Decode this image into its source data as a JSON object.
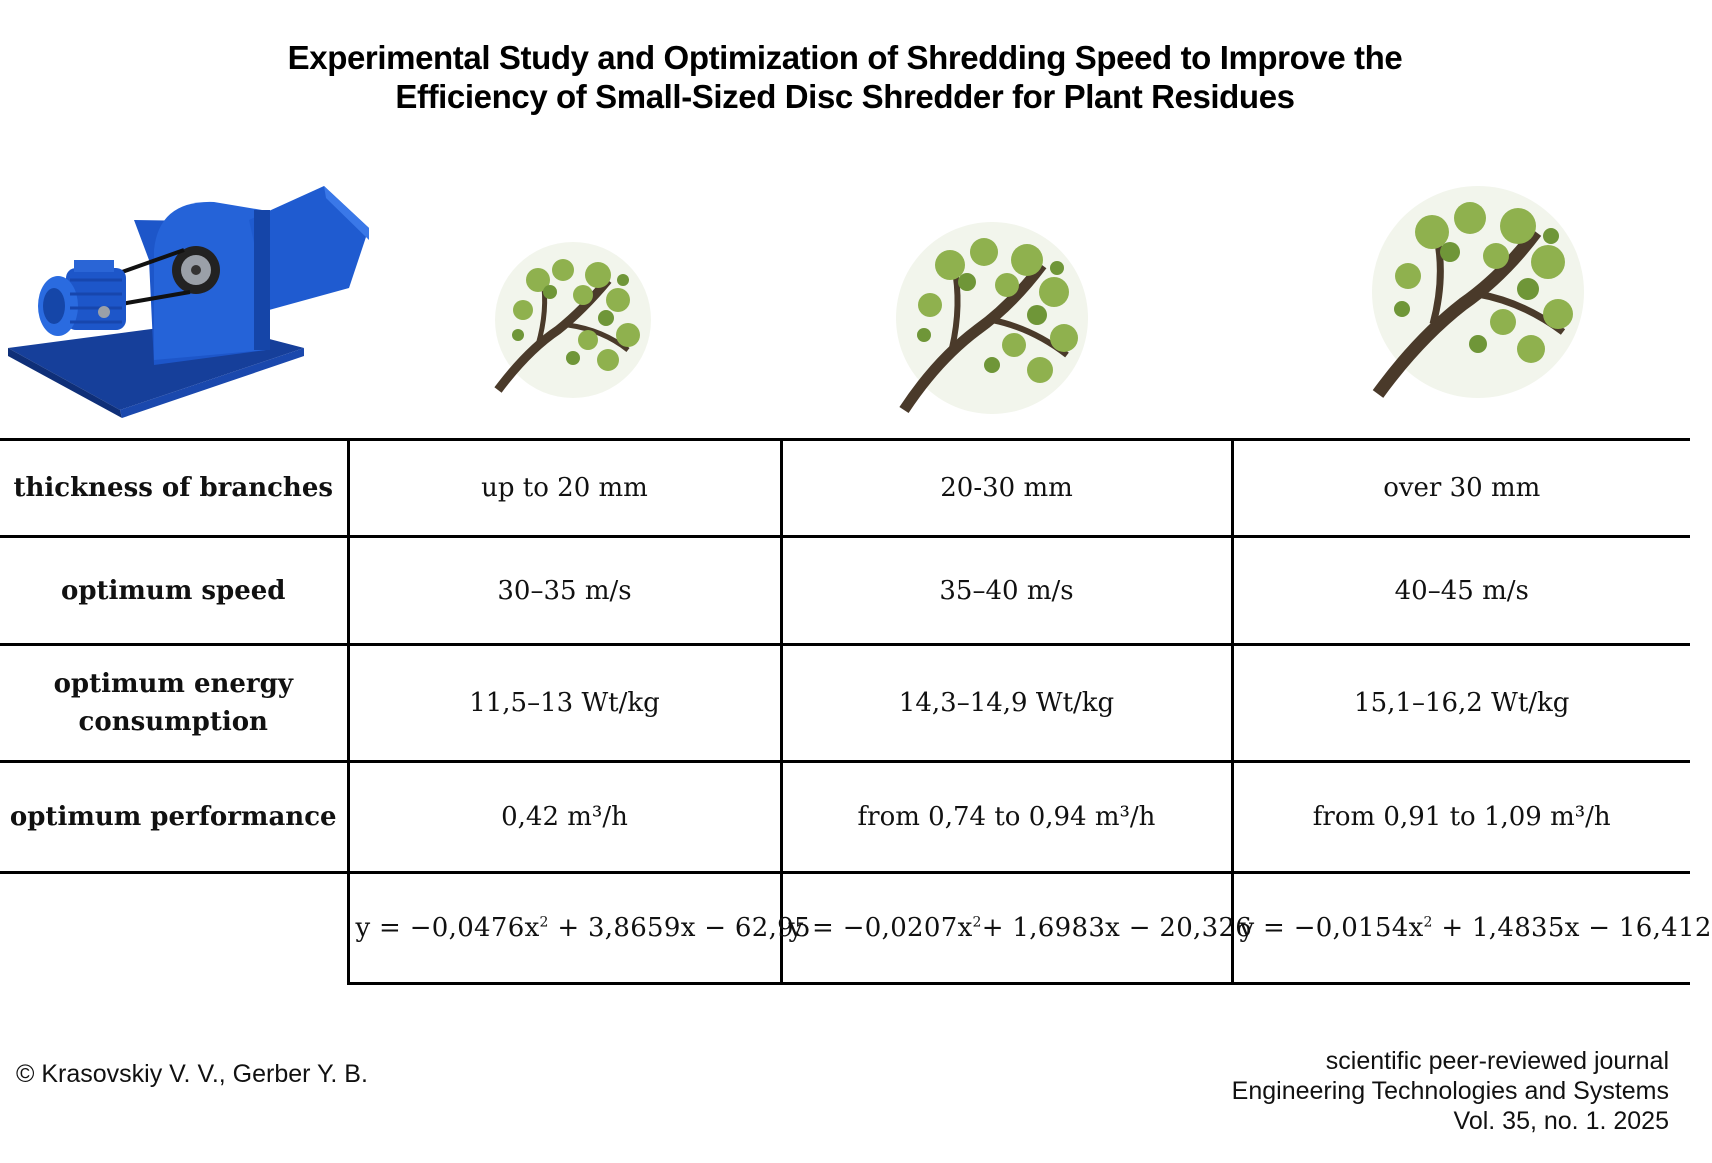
{
  "header": {
    "title_line1": "Experimental Study and Optimization of Shredding Speed to Improve the",
    "title_line2": "Efficiency of Small-Sized Disc Shredder for Plant Residues"
  },
  "colors": {
    "machine_blue": "#1d56c9",
    "leaf_green": "#8fb14e",
    "bark_brown": "#4a3a2a"
  },
  "icons": {
    "machine": "disc-shredder-illustration",
    "tree": "tree-branch-illustration"
  },
  "table": {
    "rows": [
      {
        "label": "thickness of branches",
        "values": [
          "up to 20 mm",
          "20-30 mm",
          "over 30 mm"
        ]
      },
      {
        "label": "optimum speed",
        "values": [
          "30–35 m/s",
          "35–40 m/s",
          "40–45 m/s"
        ]
      },
      {
        "label": "optimum energy consumption",
        "values": [
          "11,5–13 Wt/kg",
          "14,3–14,9 Wt/kg",
          "15,1–16,2 Wt/kg"
        ]
      },
      {
        "label": "optimum  performance",
        "values": [
          "0,42 m³/h",
          "from 0,74 to 0,94 m³/h",
          "from 0,91 to 1,09 m³/h"
        ]
      }
    ],
    "equations": [
      {
        "prefix": "y = −0,0476x",
        "exp": "2",
        "suffix": " + 3,8659x − 62,95"
      },
      {
        "prefix": "y = −0,0207x",
        "exp": "2",
        "suffix": "+ 1,6983x − 20,326"
      },
      {
        "prefix": "y = −0,0154x",
        "exp": "2",
        "suffix": " + 1,4835x − 16,412"
      }
    ]
  },
  "footer": {
    "copyright": "© Krasovskiy V. V., Gerber Y. B.",
    "journal_line1": "scientific peer-reviewed journal",
    "journal_line2": "Engineering Technologies and Systems",
    "journal_line3": "Vol. 35, no. 1. 2025"
  }
}
